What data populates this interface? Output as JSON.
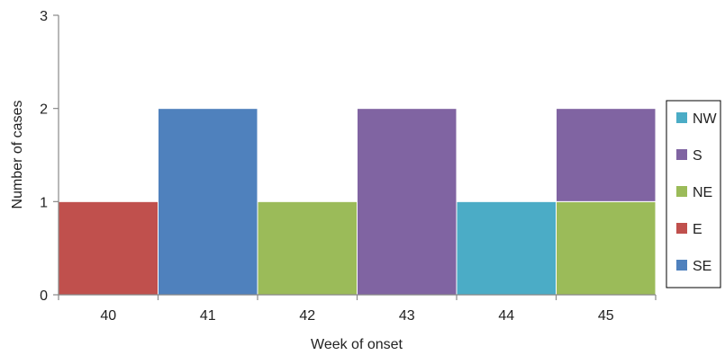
{
  "chart_data": {
    "type": "bar",
    "stacked": true,
    "categories": [
      "40",
      "41",
      "42",
      "43",
      "44",
      "45"
    ],
    "series": [
      {
        "name": "SE",
        "color": "#4f81bd",
        "values": [
          0,
          2,
          0,
          0,
          0,
          0
        ]
      },
      {
        "name": "E",
        "color": "#c0504d",
        "values": [
          1,
          0,
          0,
          0,
          0,
          0
        ]
      },
      {
        "name": "NE",
        "color": "#9bbb59",
        "values": [
          0,
          0,
          1,
          0,
          0,
          1
        ]
      },
      {
        "name": "S",
        "color": "#8064a2",
        "values": [
          0,
          0,
          0,
          2,
          0,
          1
        ]
      },
      {
        "name": "NW",
        "color": "#4bacc6",
        "values": [
          0,
          0,
          0,
          0,
          1,
          0
        ]
      }
    ],
    "legend_order": [
      "NW",
      "S",
      "NE",
      "E",
      "SE"
    ],
    "legend_position": "right",
    "title": "",
    "xlabel": "Week of onset",
    "ylabel": "Number of cases",
    "ylim": [
      0,
      3
    ],
    "yticks": [
      "0",
      "1",
      "2",
      "3"
    ],
    "grid": false
  }
}
